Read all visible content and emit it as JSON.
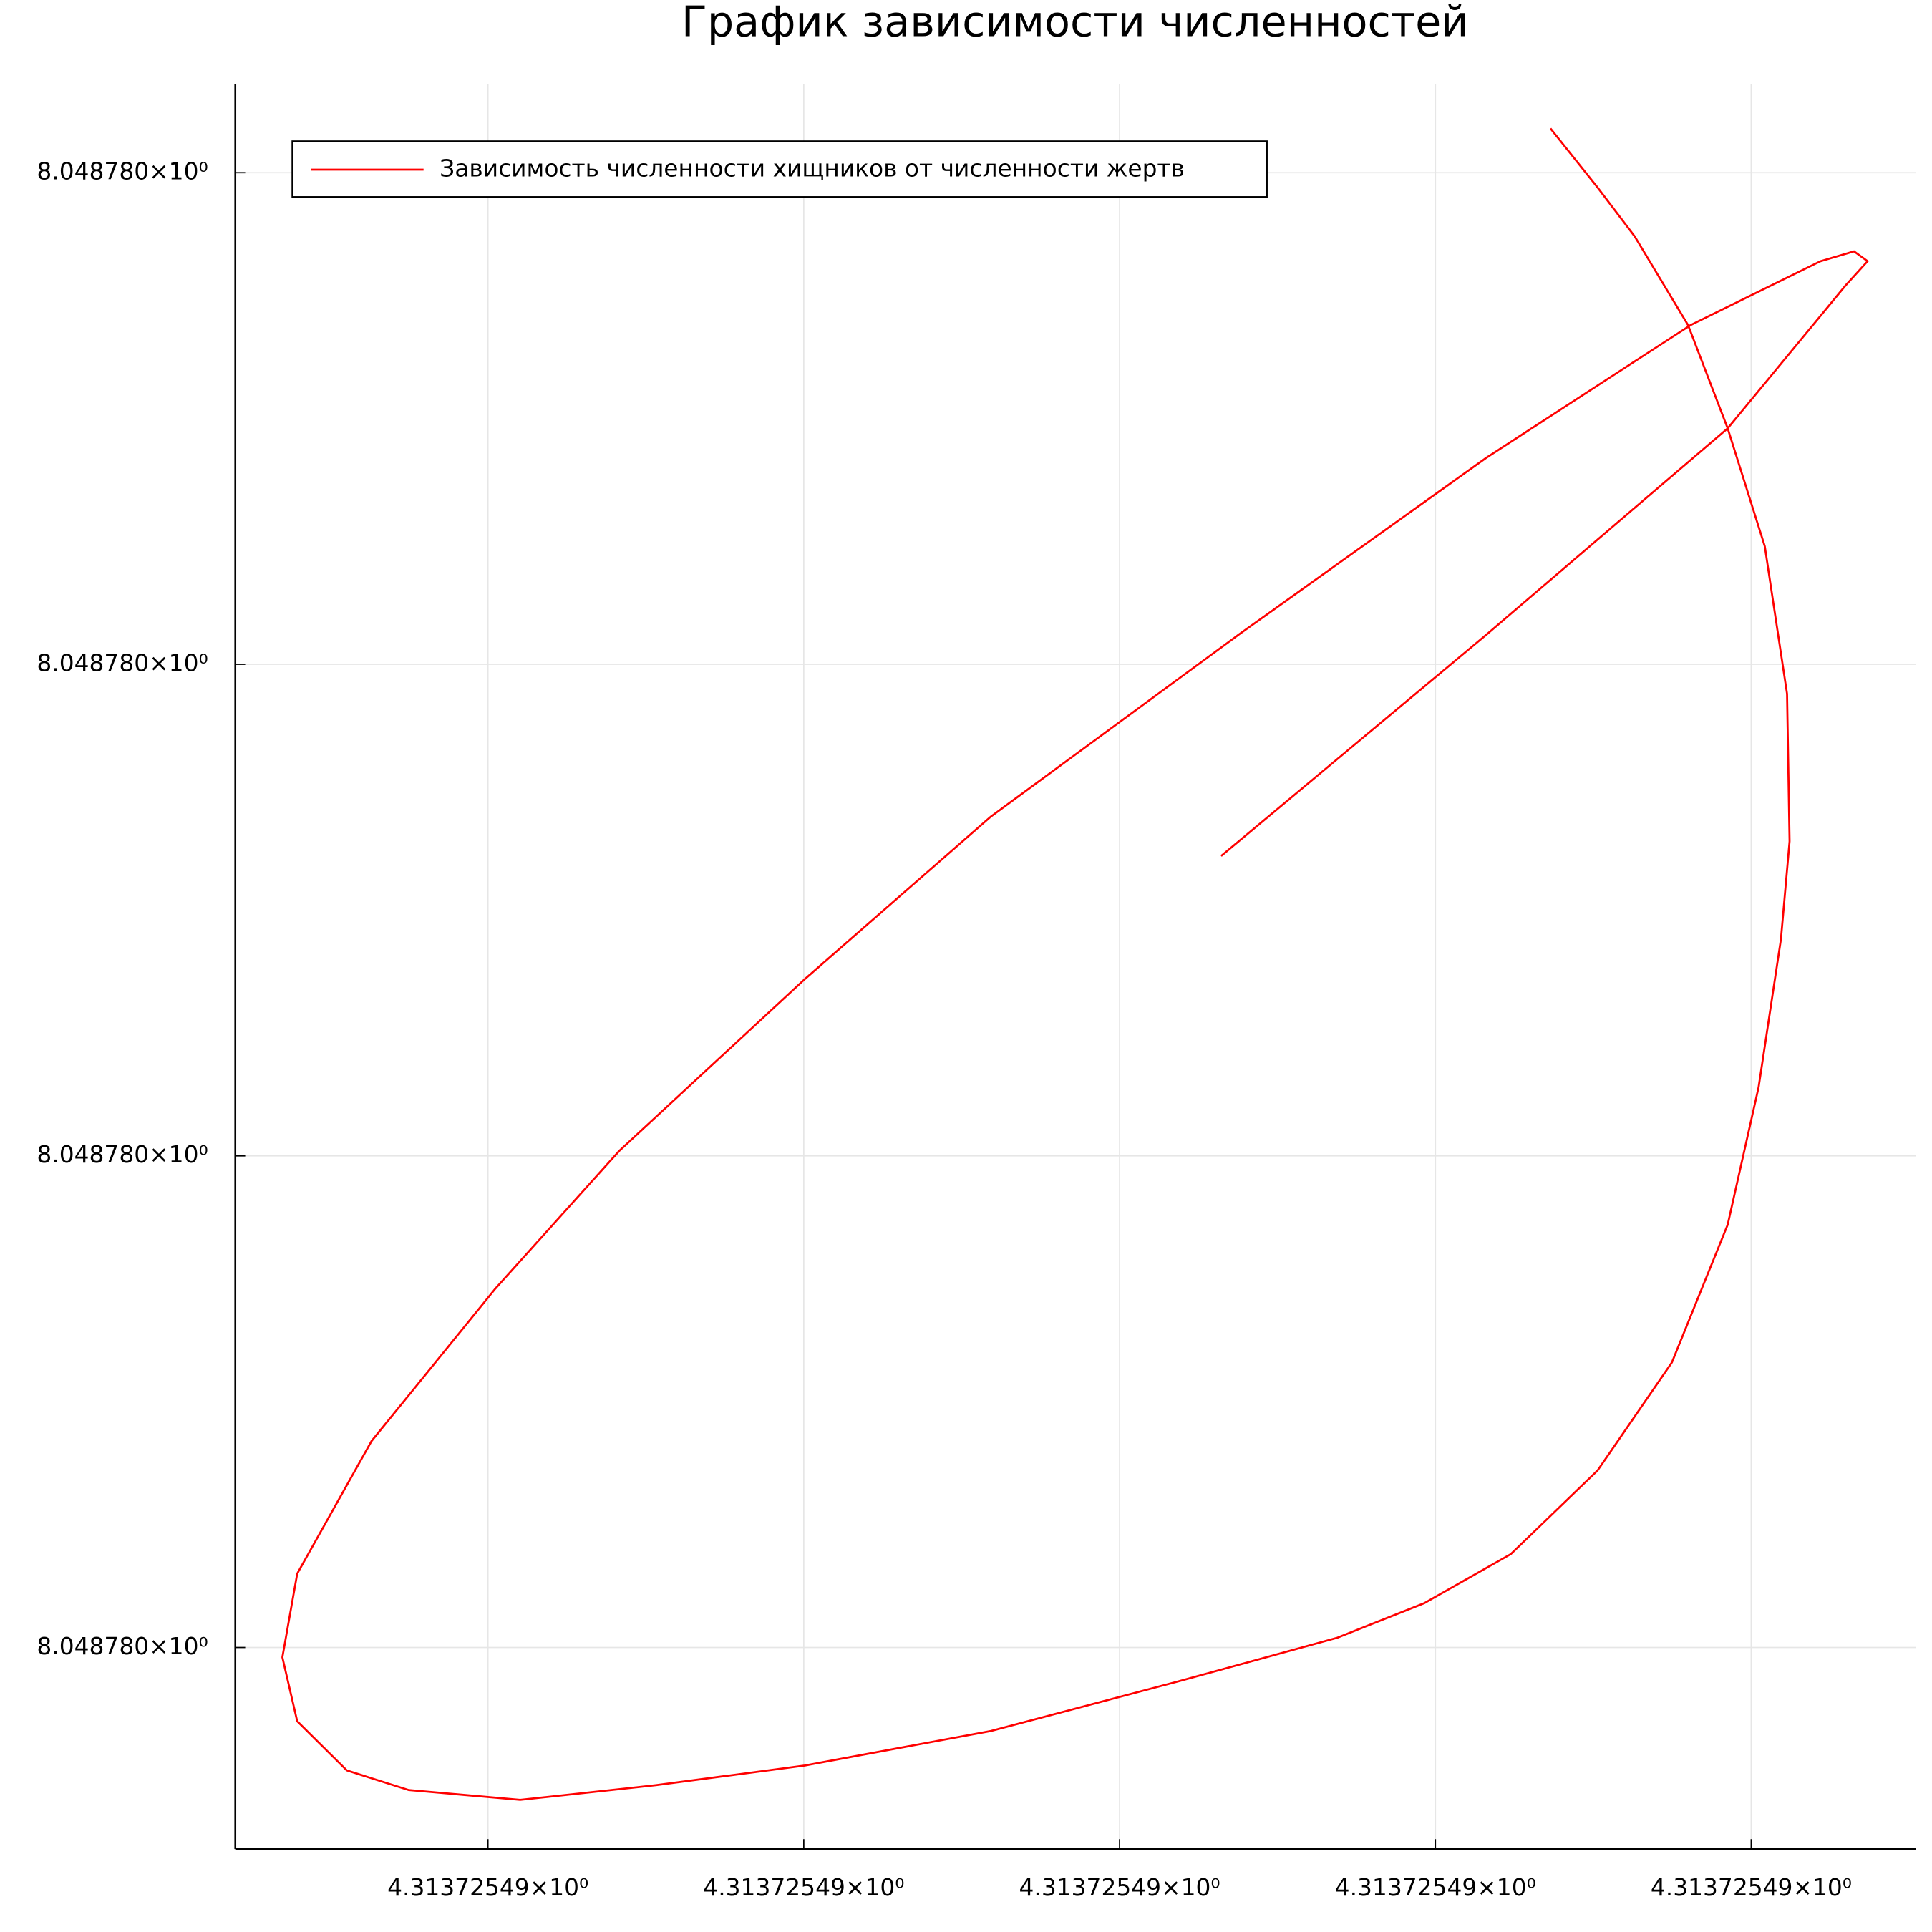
{
  "chart_data": {
    "type": "line",
    "title": "График зависимости численностей",
    "x": [
      4.3137254904643,
      4.3137254906322,
      4.3137254907851,
      4.3137254908596,
      4.3137254908737,
      4.3137254908651,
      4.3137254908439,
      4.3137254907616,
      4.3137254906322,
      4.3137254904753,
      4.3137254903184,
      4.3137254902008,
      4.3137254900831,
      4.3137254900047,
      4.3137254899263,
      4.3137254898792,
      4.3137254898698,
      4.3137254898792,
      4.3137254899106,
      4.3137254899498,
      4.3137254900204,
      4.3137254901067,
      4.3137254902008,
      4.3137254903184,
      4.3137254904361,
      4.313725490538,
      4.3137254905929,
      4.3137254906478,
      4.3137254907027,
      4.3137254907498,
      4.3137254907851,
      4.3137254908047,
      4.3137254908188,
      4.3137254908243,
      4.3137254908227,
      4.3137254908086,
      4.3137254907851,
      4.31372549076,
      4.3137254907263,
      4.3137254907027,
      4.3137254906729
    ],
    "series": [
      {
        "name": "Зависимость численности хищников от численности жертв",
        "color": "#ff0000",
        "values": [
          8.0487800161,
          8.0487800206,
          8.0487800248,
          8.0487800277,
          8.0487800282,
          8.0487800284,
          8.0487800282,
          8.0487800269,
          8.0487800242,
          8.0487800206,
          8.0487800169,
          8.0487800136,
          8.0487800101,
          8.0487800073,
          8.0487800042,
          8.0487800015,
          8.0487799998,
          8.0487799985,
          8.0487799975,
          8.0487799971,
          8.0487799969,
          8.0487799972,
          8.0487799976,
          8.0487799983,
          8.0487799993,
          8.0487800002,
          8.0487800009,
          8.0487800019,
          8.0487800036,
          8.0487800058,
          8.0487800086,
          8.0487800114,
          8.0487800144,
          8.0487800164,
          8.0487800194,
          8.0487800224,
          8.0487800248,
          8.0487800269,
          8.0487800287,
          8.0487800297,
          8.0487800309
        ]
      }
    ],
    "xlim": [
      4.31372548984,
      4.3137254909043
    ],
    "ylim": [
      8.0487799959,
      8.0487800318
    ],
    "xticks": [
      {
        "value": 4.31372549,
        "label": "4.31372549×10⁰"
      },
      {
        "value": 4.3137254902,
        "label": "4.31372549×10⁰"
      },
      {
        "value": 4.3137254904,
        "label": "4.31372549×10⁰"
      },
      {
        "value": 4.3137254906,
        "label": "4.31372549×10⁰"
      },
      {
        "value": 4.3137254908,
        "label": "4.31372549×10⁰"
      }
    ],
    "yticks": [
      {
        "value": 8.04878,
        "label": "8.048780×10⁰"
      },
      {
        "value": 8.04878001,
        "label": "8.048780×10⁰"
      },
      {
        "value": 8.04878002,
        "label": "8.048780×10⁰"
      },
      {
        "value": 8.04878003,
        "label": "8.048780×10⁰"
      }
    ],
    "grid": true,
    "legend": "top-left"
  }
}
